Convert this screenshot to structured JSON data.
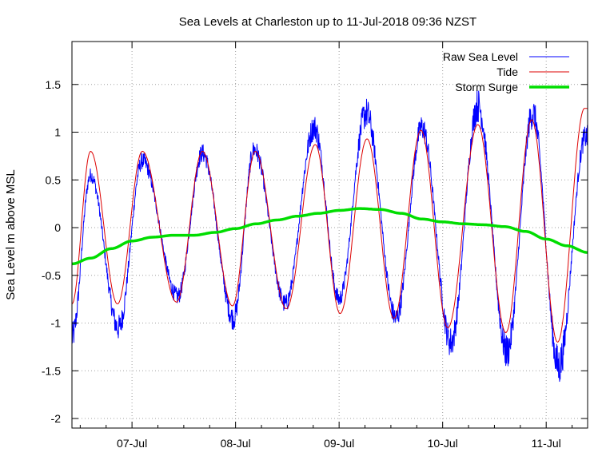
{
  "chart_data": {
    "type": "line",
    "title": "Sea Levels at Charleston up to 11-Jul-2018 09:36 NZST",
    "xlabel": "",
    "ylabel": "Sea Level m above MSL",
    "x_unit": "days (July 2018)",
    "xlim": [
      6.42,
      11.4
    ],
    "ylim": [
      -2.1,
      1.95
    ],
    "xticks": [
      {
        "value": 7,
        "label": "07-Jul"
      },
      {
        "value": 8,
        "label": "08-Jul"
      },
      {
        "value": 9,
        "label": "09-Jul"
      },
      {
        "value": 10,
        "label": "10-Jul"
      },
      {
        "value": 11,
        "label": "11-Jul"
      }
    ],
    "yticks": [
      {
        "value": 1.5,
        "label": "1.5"
      },
      {
        "value": 1,
        "label": "1"
      },
      {
        "value": 0.5,
        "label": "0.5"
      },
      {
        "value": 0,
        "label": "0"
      },
      {
        "value": -0.5,
        "label": "-0.5"
      },
      {
        "value": -1,
        "label": "-1"
      },
      {
        "value": -1.5,
        "label": "-1.5"
      },
      {
        "value": -2,
        "label": "-2"
      }
    ],
    "grid": true,
    "legend_position": "top-right",
    "series": [
      {
        "name": "Raw Sea Level",
        "color": "#0000ff",
        "noisy": true,
        "points": [
          [
            6.42,
            -1.15
          ],
          [
            6.6,
            0.55
          ],
          [
            6.87,
            -1.05
          ],
          [
            7.1,
            0.7
          ],
          [
            7.44,
            -0.72
          ],
          [
            7.68,
            0.78
          ],
          [
            7.98,
            -0.95
          ],
          [
            8.18,
            0.82
          ],
          [
            8.48,
            -0.8
          ],
          [
            8.76,
            1.05
          ],
          [
            9.0,
            -0.75
          ],
          [
            9.26,
            1.2
          ],
          [
            9.55,
            -0.95
          ],
          [
            9.8,
            1.05
          ],
          [
            10.08,
            -1.2
          ],
          [
            10.34,
            1.28
          ],
          [
            10.62,
            -1.3
          ],
          [
            10.87,
            1.2
          ],
          [
            11.12,
            -1.45
          ],
          [
            11.38,
            0.95
          ]
        ]
      },
      {
        "name": "Tide",
        "color": "#dd0000",
        "noisy": false,
        "points": [
          [
            6.42,
            -0.8
          ],
          [
            6.6,
            0.8
          ],
          [
            6.86,
            -0.8
          ],
          [
            7.1,
            0.8
          ],
          [
            7.43,
            -0.78
          ],
          [
            7.68,
            0.8
          ],
          [
            7.97,
            -0.82
          ],
          [
            8.19,
            0.8
          ],
          [
            8.49,
            -0.85
          ],
          [
            8.77,
            0.87
          ],
          [
            9.01,
            -0.9
          ],
          [
            9.27,
            0.93
          ],
          [
            9.53,
            -0.95
          ],
          [
            9.79,
            1.02
          ],
          [
            10.05,
            -1.05
          ],
          [
            10.34,
            1.08
          ],
          [
            10.61,
            -1.1
          ],
          [
            10.86,
            1.13
          ],
          [
            11.11,
            -1.2
          ],
          [
            11.37,
            1.25
          ]
        ]
      },
      {
        "name": "Storm Surge",
        "color": "#00dd00",
        "noisy": false,
        "points": [
          [
            6.42,
            -0.38
          ],
          [
            6.6,
            -0.32
          ],
          [
            6.8,
            -0.22
          ],
          [
            7.0,
            -0.14
          ],
          [
            7.2,
            -0.1
          ],
          [
            7.4,
            -0.08
          ],
          [
            7.6,
            -0.08
          ],
          [
            7.8,
            -0.05
          ],
          [
            8.0,
            -0.01
          ],
          [
            8.2,
            0.04
          ],
          [
            8.4,
            0.08
          ],
          [
            8.6,
            0.12
          ],
          [
            8.8,
            0.15
          ],
          [
            9.0,
            0.18
          ],
          [
            9.2,
            0.2
          ],
          [
            9.4,
            0.19
          ],
          [
            9.6,
            0.15
          ],
          [
            9.8,
            0.09
          ],
          [
            10.0,
            0.06
          ],
          [
            10.2,
            0.04
          ],
          [
            10.4,
            0.03
          ],
          [
            10.6,
            0.01
          ],
          [
            10.8,
            -0.04
          ],
          [
            11.0,
            -0.12
          ],
          [
            11.2,
            -0.19
          ],
          [
            11.4,
            -0.26
          ]
        ]
      }
    ]
  }
}
